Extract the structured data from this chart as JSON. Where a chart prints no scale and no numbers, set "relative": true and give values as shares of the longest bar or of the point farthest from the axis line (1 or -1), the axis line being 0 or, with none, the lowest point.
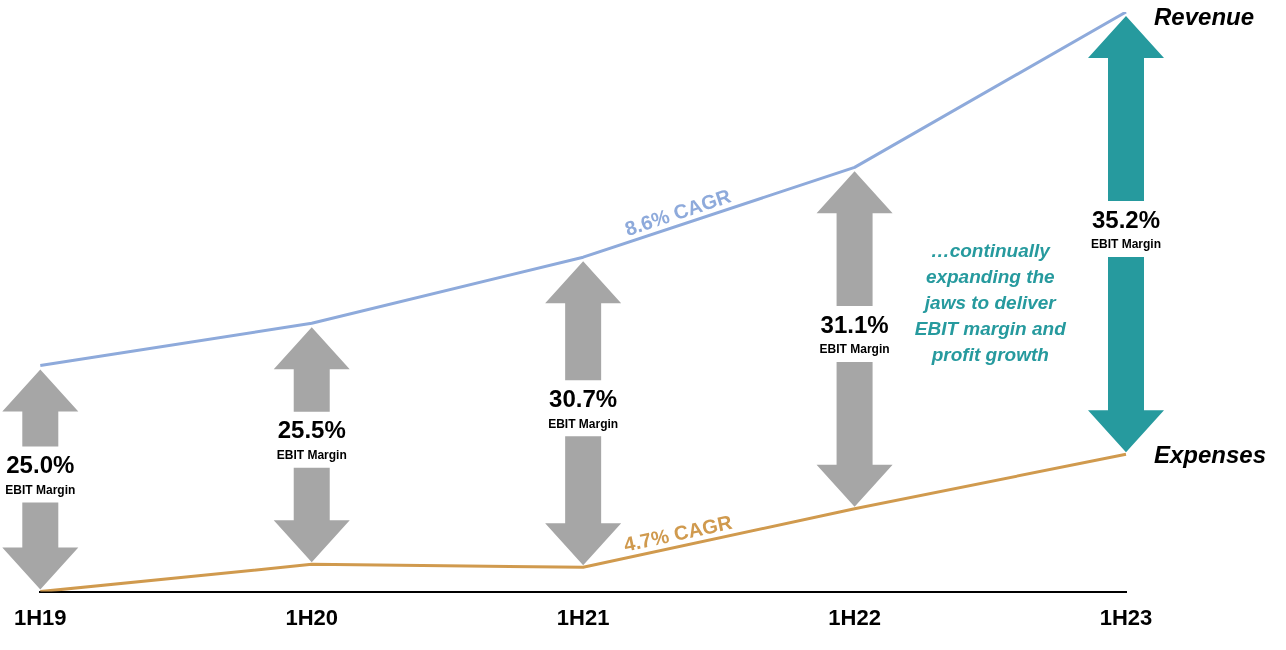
{
  "chart_data": {
    "type": "line",
    "relative": true,
    "categories": [
      "1H19",
      "1H20",
      "1H21",
      "1H22",
      "1H23"
    ],
    "series": [
      {
        "name": "Revenue",
        "color": "#8eaadb",
        "values": [
          0.39,
          0.463,
          0.577,
          0.732,
          1
        ]
      },
      {
        "name": "Expenses",
        "color": "#d09a4e",
        "values": [
          0.0,
          0.047,
          0.042,
          0.143,
          0.237
        ]
      }
    ],
    "annotations": [
      "8.6% CAGR",
      "4.7% CAGR",
      "…continually expanding the jaws to deliver EBIT margin and profit growth",
      "25.0%",
      "EBIT Margin",
      "25.5%",
      "EBIT Margin",
      "30.7%",
      "EBIT Margin",
      "31.1%",
      "EBIT Margin",
      "35.2%",
      "EBIT Margin"
    ],
    "legend": false,
    "grid": false,
    "marker": "none",
    "line_style": "solid"
  }
}
